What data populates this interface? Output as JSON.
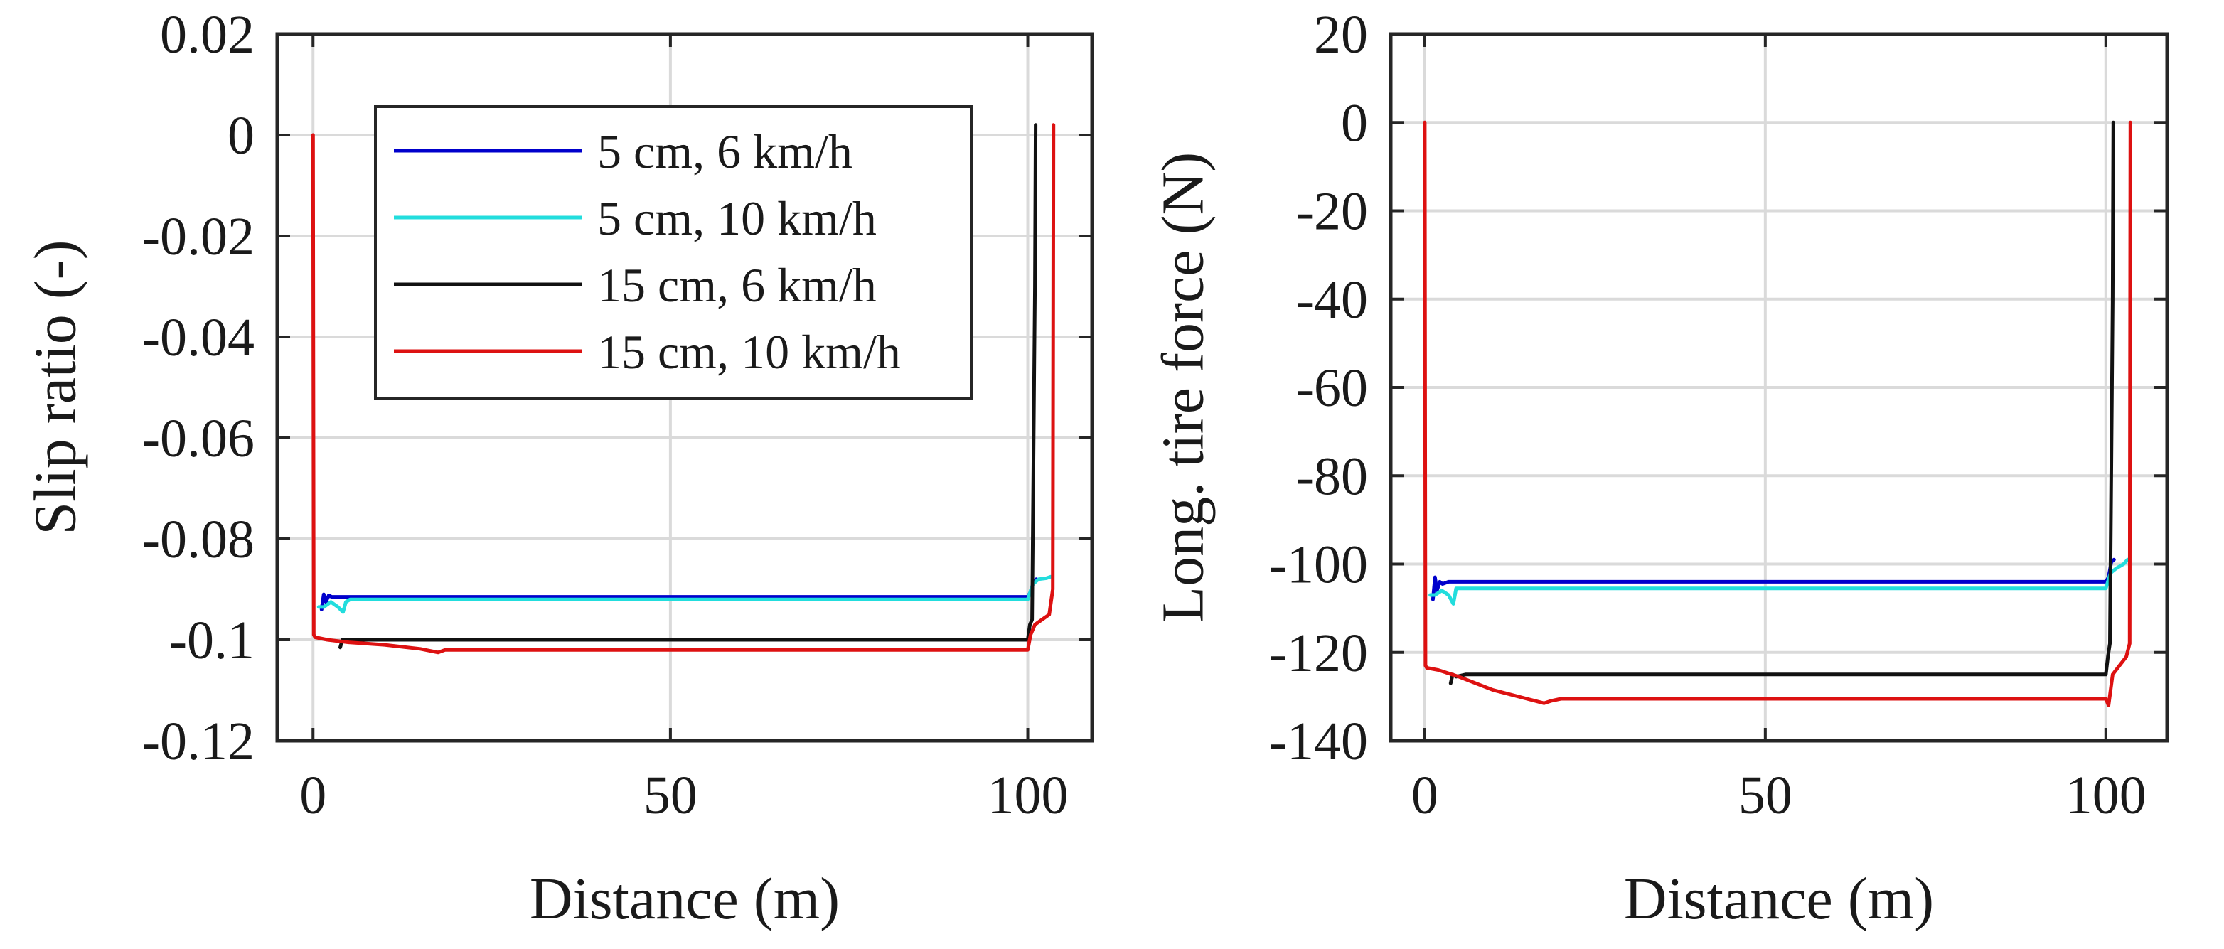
{
  "chart_data": [
    {
      "type": "line",
      "xlabel": "Distance (m)",
      "ylabel": "Slip ratio (-)",
      "xlim": [
        -5,
        109
      ],
      "ylim": [
        -0.12,
        0.02
      ],
      "xticks": [
        0,
        50,
        100
      ],
      "xtick_labels": [
        "0",
        "50",
        "100"
      ],
      "yticks": [
        0.02,
        0,
        -0.02,
        -0.04,
        -0.06,
        -0.08,
        -0.1,
        -0.12
      ],
      "ytick_labels": [
        "0.02",
        "0",
        "-0.02",
        "-0.04",
        "-0.06",
        "-0.08",
        "-0.1",
        "-0.12"
      ],
      "grid": true,
      "legend": {
        "placement": "top-left"
      },
      "series": [
        {
          "name": "5 cm, 6 km/h",
          "color": "#0000cc",
          "x": [
            1.2,
            1.5,
            1.8,
            2.2,
            2.6,
            3.5,
            100.0,
            100.4,
            100.8,
            101.2
          ],
          "y": [
            -0.094,
            -0.091,
            -0.0925,
            -0.0912,
            -0.0915,
            -0.0915,
            -0.0915,
            -0.0905,
            -0.0885,
            -0.088
          ]
        },
        {
          "name": "5 cm, 10 km/h",
          "color": "#22dddd",
          "x": [
            0.8,
            1.5,
            2.5,
            3.5,
            4.2,
            4.6,
            5.2,
            100.0,
            100.7,
            101.5,
            102.6,
            103.2
          ],
          "y": [
            -0.0935,
            -0.0935,
            -0.0925,
            -0.0935,
            -0.0945,
            -0.0925,
            -0.092,
            -0.092,
            -0.089,
            -0.088,
            -0.0878,
            -0.0875
          ]
        },
        {
          "name": "15 cm, 6 km/h",
          "color": "#111111",
          "x": [
            3.8,
            4.1,
            5.0,
            100.0,
            100.3,
            100.6,
            101.0,
            101.1
          ],
          "y": [
            -0.1015,
            -0.1,
            -0.1,
            -0.1,
            -0.097,
            -0.096,
            -0.03,
            0.002
          ]
        },
        {
          "name": "15 cm, 10 km/h",
          "color": "#dd1111",
          "x": [
            0.0,
            0.1,
            0.3,
            2.0,
            5.0,
            10.0,
            15.0,
            17.5,
            18.5,
            20.0,
            100.0,
            100.4,
            101.0,
            102.0,
            103.0,
            103.5,
            103.6
          ],
          "y": [
            0.0,
            -0.099,
            -0.0995,
            -0.1,
            -0.1005,
            -0.101,
            -0.1018,
            -0.1025,
            -0.102,
            -0.102,
            -0.102,
            -0.099,
            -0.097,
            -0.096,
            -0.095,
            -0.09,
            0.002
          ]
        }
      ]
    },
    {
      "type": "line",
      "xlabel": "Distance (m)",
      "ylabel": "Long. tire force (N)",
      "xlim": [
        -5,
        109
      ],
      "ylim": [
        -140,
        20
      ],
      "xticks": [
        0,
        50,
        100
      ],
      "xtick_labels": [
        "0",
        "50",
        "100"
      ],
      "yticks": [
        20,
        0,
        -20,
        -40,
        -60,
        -80,
        -100,
        -120,
        -140
      ],
      "ytick_labels": [
        "20",
        "0",
        "-20",
        "-40",
        "-60",
        "-80",
        "-100",
        "-120",
        "-140"
      ],
      "grid": true,
      "series": [
        {
          "name": "5 cm, 6 km/h",
          "color": "#0000cc",
          "x": [
            1.2,
            1.5,
            1.8,
            2.2,
            2.6,
            3.5,
            100.0,
            100.4,
            100.8,
            101.2
          ],
          "y": [
            -108,
            -103,
            -106,
            -104,
            -104.5,
            -104,
            -104,
            -103,
            -99.5,
            -99
          ]
        },
        {
          "name": "5 cm, 10 km/h",
          "color": "#22dddd",
          "x": [
            0.8,
            1.5,
            2.5,
            3.5,
            4.2,
            4.6,
            5.2,
            100.0,
            100.7,
            101.5,
            102.6,
            103.2
          ],
          "y": [
            -107,
            -107,
            -106,
            -107,
            -109,
            -105.5,
            -105.5,
            -105.5,
            -102,
            -101,
            -100,
            -99
          ]
        },
        {
          "name": "15 cm, 6 km/h",
          "color": "#111111",
          "x": [
            3.8,
            4.1,
            4.6,
            6.0,
            100.0,
            100.3,
            100.6,
            101.0,
            101.1
          ],
          "y": [
            -127,
            -125,
            -125.5,
            -125,
            -125,
            -121,
            -118,
            -40,
            0
          ]
        },
        {
          "name": "15 cm, 10 km/h",
          "color": "#dd1111",
          "x": [
            0.0,
            0.1,
            0.3,
            2.0,
            5.0,
            10.0,
            15.0,
            17.5,
            18.5,
            20.0,
            100.0,
            100.4,
            101.0,
            102.0,
            103.0,
            103.5,
            103.6
          ],
          "y": [
            0.0,
            -123,
            -123.5,
            -124,
            -125.5,
            -128.5,
            -130.5,
            -131.5,
            -131,
            -130.5,
            -130.5,
            -132,
            -125,
            -123,
            -121,
            -118,
            0
          ]
        }
      ]
    }
  ]
}
